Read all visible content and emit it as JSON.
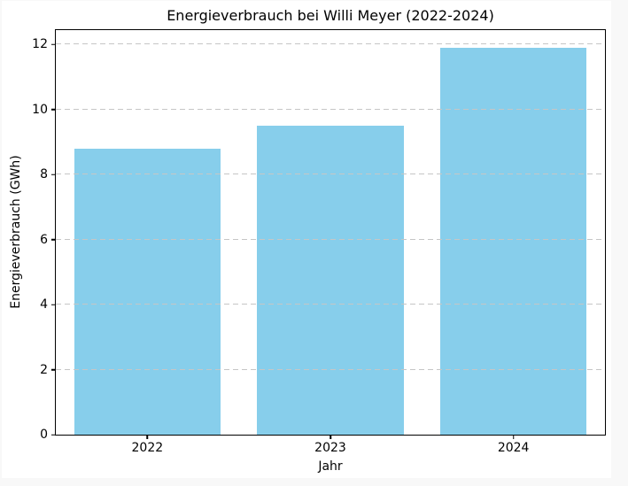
{
  "chart_data": {
    "type": "bar",
    "title": "Energieverbrauch bei Willi Meyer (2022-2024)",
    "xlabel": "Jahr",
    "ylabel": "Energieverbrauch (GWh)",
    "categories": [
      "2022",
      "2023",
      "2024"
    ],
    "values": [
      8.8,
      9.5,
      11.9
    ],
    "yticks": [
      0,
      2,
      4,
      6,
      8,
      10,
      12
    ],
    "ylim": [
      0,
      12.44
    ],
    "bar_width": 0.8,
    "bar_color": "#87CEEB",
    "grid": "dashed horizontal, drawn above bars",
    "legend": "none",
    "spine_color": "#000000",
    "gridline_color": "#c6c6c6",
    "figure_background": "#ffffff",
    "page_background": "#f8f8f8"
  }
}
